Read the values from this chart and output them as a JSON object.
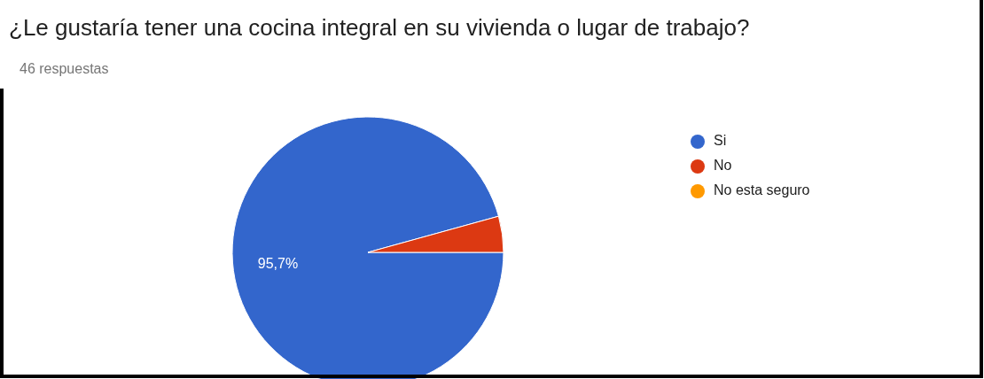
{
  "chart_data": {
    "type": "pie",
    "title": "¿Le gustaría tener una cocina integral en su vivienda o lugar de trabajo?",
    "subtitle": "46 respuestas",
    "categories": [
      "Si",
      "No",
      "No esta seguro"
    ],
    "values": [
      95.7,
      4.3,
      0
    ],
    "colors": [
      "#3366cc",
      "#dc3912",
      "#ff9900"
    ],
    "value_labels": [
      "95,7%",
      null,
      null
    ],
    "legend": "right"
  }
}
